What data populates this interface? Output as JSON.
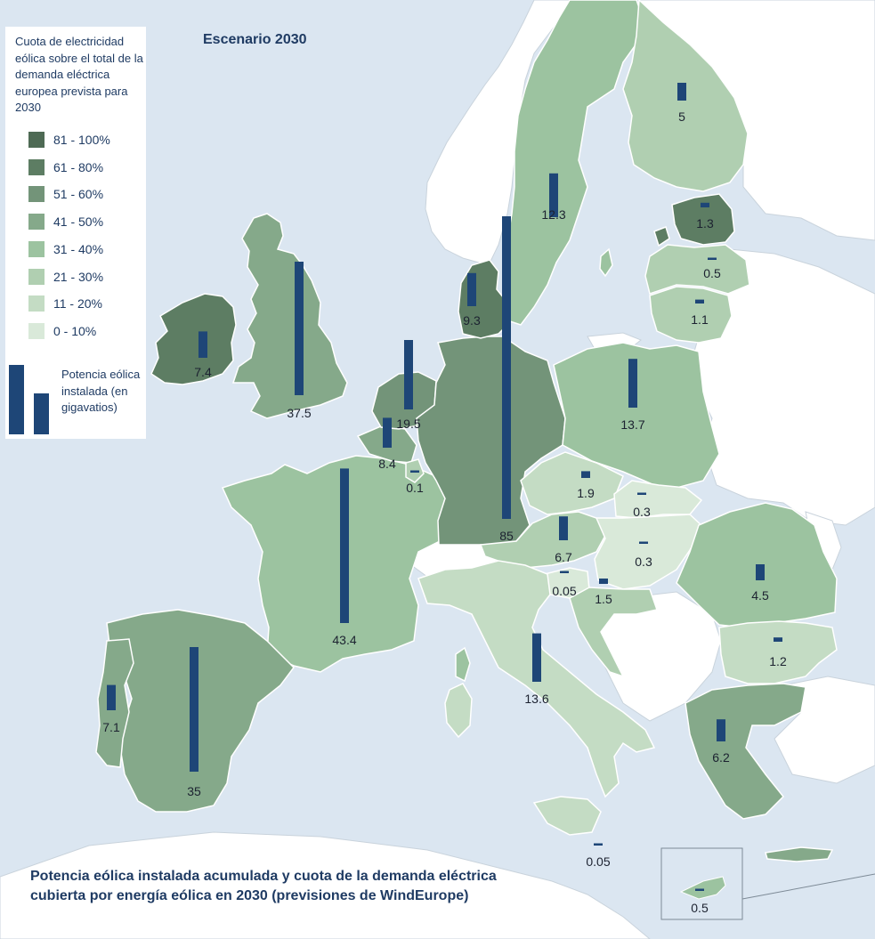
{
  "title": "Escenario 2030",
  "caption": "Potencia eólica instalada acumulada y cuota de la demanda eléctrica cubierta por energía eólica en 2030 (previsiones de WindEurope)",
  "legend": {
    "share_title": "Cuota de electricidad eólica sobre el total de la demanda eléctrica europea prevista para 2030",
    "share_classes": [
      {
        "label": "81 - 100%",
        "color": "#4e6a54"
      },
      {
        "label": "61 - 80%",
        "color": "#5d7d63"
      },
      {
        "label": "51 - 60%",
        "color": "#739479"
      },
      {
        "label": "41 - 50%",
        "color": "#85a98a"
      },
      {
        "label": "31 - 40%",
        "color": "#9cc3a0"
      },
      {
        "label": "21 - 30%",
        "color": "#b0cfb1"
      },
      {
        "label": "11 - 20%",
        "color": "#c4dcc4"
      },
      {
        "label": "0 - 10%",
        "color": "#d9e9d9"
      }
    ],
    "bar_title": "Potencia eólica instalada (en gigavatios)"
  },
  "colors": {
    "sea": "#dbe6f1",
    "bar": "#1e4677",
    "border": "#ffffff",
    "no_data": "#ffffff"
  },
  "chart_data": {
    "type": "bar",
    "unit": "GW",
    "categories": [
      "Irlanda",
      "Reino Unido",
      "Países Bajos",
      "Bélgica",
      "Luxemburgo",
      "Dinamarca",
      "Alemania",
      "Suecia",
      "Finlandia",
      "Estonia",
      "Letonia",
      "Lituania",
      "Polonia",
      "República Checa",
      "Eslovaquia",
      "Austria",
      "Hungría",
      "Eslovenia",
      "Croacia",
      "Rumanía",
      "Bulgaria",
      "Grecia",
      "Italia",
      "Malta",
      "Chipre",
      "Francia",
      "España",
      "Portugal"
    ],
    "values": [
      7.4,
      37.5,
      19.5,
      8.4,
      0.1,
      9.3,
      85,
      12.3,
      5,
      1.3,
      0.5,
      1.1,
      13.7,
      1.9,
      0.3,
      6.7,
      0.3,
      0.05,
      1.5,
      4.5,
      1.2,
      6.2,
      13.6,
      0.05,
      0.5,
      43.4,
      35,
      7.1
    ],
    "labels": [
      "7.4",
      "37.5",
      "19.5",
      "8.4",
      "0.1",
      "9.3",
      "85",
      "12.3",
      "5",
      "1.3",
      "0.5",
      "1.1",
      "13.7",
      "1.9",
      "0.3",
      "6.7",
      "0.3",
      "0.05",
      "1.5",
      "4.5",
      "1.2",
      "6.2",
      "13.6",
      "0.05",
      "0.5",
      "43.4",
      "35",
      "7.1"
    ],
    "share_class": [
      "61 - 80%",
      "41 - 50%",
      "51 - 60%",
      "41 - 50%",
      "21 - 30%",
      "61 - 80%",
      "51 - 60%",
      "31 - 40%",
      "21 - 30%",
      "61 - 80%",
      "21 - 30%",
      "21 - 30%",
      "31 - 40%",
      "11 - 20%",
      "0 - 10%",
      "21 - 30%",
      "0 - 10%",
      "0 - 10%",
      "21 - 30%",
      "31 - 40%",
      "11 - 20%",
      "41 - 50%",
      "11 - 20%",
      "0 - 10%",
      "31 - 40%",
      "31 - 40%",
      "41 - 50%",
      "41 - 50%"
    ]
  }
}
